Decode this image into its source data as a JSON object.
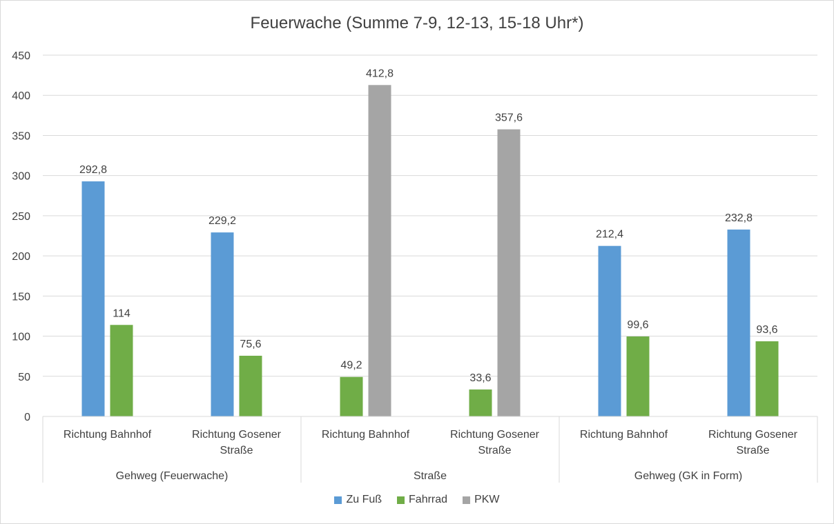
{
  "chart_data": {
    "type": "bar",
    "title": "Feuerwache (Summe 7-9, 12-13, 15-18 Uhr*)",
    "ylim": [
      0,
      450
    ],
    "yticks": [
      "0",
      "50",
      "100",
      "150",
      "200",
      "250",
      "300",
      "350",
      "400",
      "450"
    ],
    "grid": true,
    "legend_position": "bottom",
    "groups": [
      {
        "label": "Gehweg (Feuerwache)",
        "categories": [
          [
            "Richtung Bahnhof"
          ],
          [
            "Richtung Gosener",
            "Straße"
          ]
        ]
      },
      {
        "label": "Straße",
        "categories": [
          [
            "Richtung Bahnhof"
          ],
          [
            "Richtung Gosener",
            "Straße"
          ]
        ]
      },
      {
        "label": "Gehweg (GK in Form)",
        "categories": [
          [
            "Richtung Bahnhof"
          ],
          [
            "Richtung Gosener",
            "Straße"
          ]
        ]
      }
    ],
    "series": [
      {
        "name": "Zu Fuß",
        "color": "#5b9bd5",
        "values": [
          292.8,
          229.2,
          null,
          null,
          212.4,
          232.8
        ],
        "labels": [
          "292,8",
          "229,2",
          "",
          "",
          "212,4",
          "232,8"
        ]
      },
      {
        "name": "Fahrrad",
        "color": "#70ad47",
        "values": [
          114,
          75.6,
          49.2,
          33.6,
          99.6,
          93.6
        ],
        "labels": [
          "114",
          "75,6",
          "49,2",
          "33,6",
          "99,6",
          "93,6"
        ]
      },
      {
        "name": "PKW",
        "color": "#a5a5a5",
        "values": [
          null,
          null,
          412.8,
          357.6,
          null,
          null
        ],
        "labels": [
          "",
          "",
          "412,8",
          "357,6",
          "",
          ""
        ]
      }
    ]
  }
}
